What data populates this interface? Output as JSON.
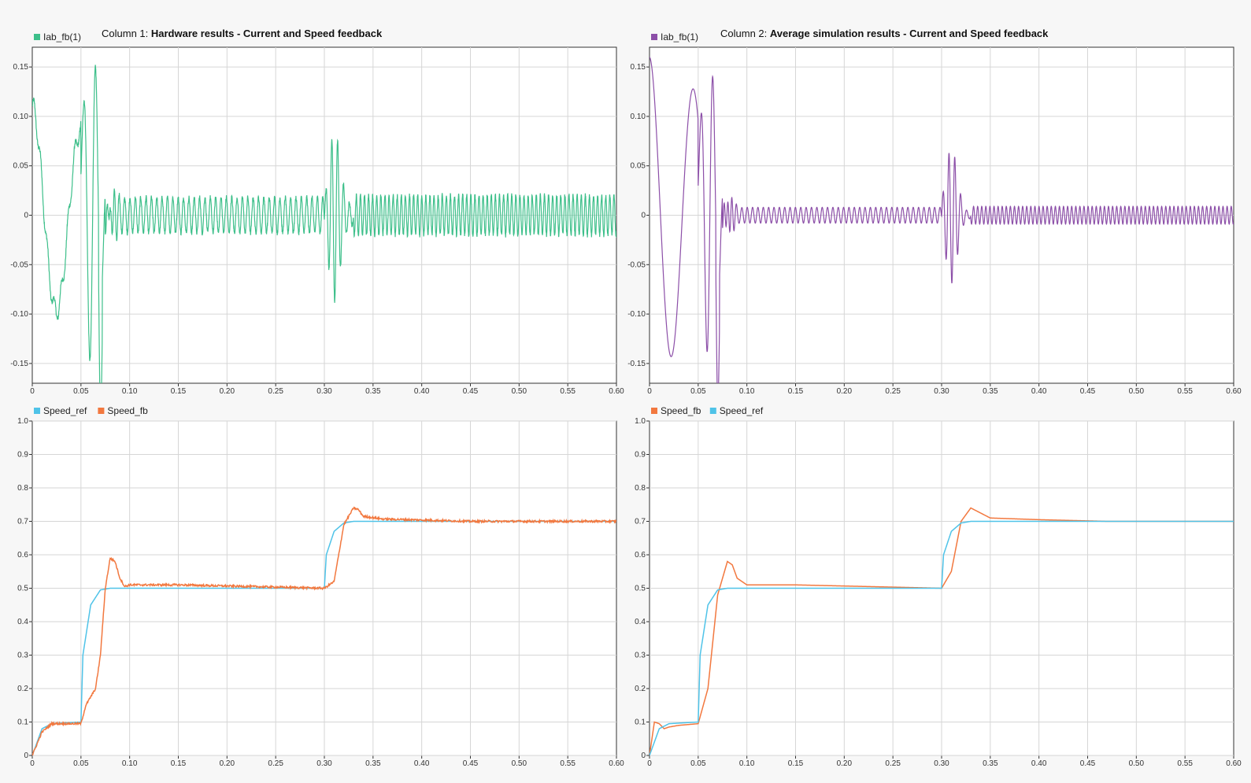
{
  "column_titles": [
    {
      "prefix": "Column 1: ",
      "bold": "Hardware results - Current and Speed feedback"
    },
    {
      "prefix": "Column 2: ",
      "bold": "Average simulation results - Current and Speed feedback"
    }
  ],
  "colors": {
    "iab_hw": "#3dbf8a",
    "iab_sim": "#8c4fa8",
    "speed_ref": "#4fc3e8",
    "speed_fb": "#f2783f",
    "grid": "#d6d6d6",
    "axis": "#333333",
    "plot_bg": "#ffffff",
    "page_bg": "#f7f7f7"
  },
  "chart_data": [
    {
      "type": "line",
      "id": "current_hw",
      "legend": [
        "Iab_fb(1)"
      ],
      "series": [
        {
          "name": "Iab_fb(1)",
          "color_key": "iab_hw",
          "kind": "current",
          "variant": "hw"
        }
      ],
      "xlim": [
        0,
        0.6
      ],
      "ylim": [
        -0.17,
        0.17
      ],
      "xticks": [
        "0",
        "0.05",
        "0.10",
        "0.15",
        "0.20",
        "0.25",
        "0.30",
        "0.35",
        "0.40",
        "0.45",
        "0.50",
        "0.55",
        "0.60"
      ],
      "yticks": [
        {
          "v": 0.15,
          "label": "0.15"
        },
        {
          "v": 0.1,
          "label": "0.10"
        },
        {
          "v": 0.05,
          "label": "0.05"
        },
        {
          "v": 0,
          "label": "0"
        },
        {
          "v": -0.05,
          "label": "-0.05"
        },
        {
          "v": -0.1,
          "label": "-0.10"
        },
        {
          "v": -0.15,
          "label": "-0.15"
        }
      ],
      "grid": true,
      "legend_position": "top-left"
    },
    {
      "type": "line",
      "id": "current_sim",
      "legend": [
        "Iab_fb(1)"
      ],
      "series": [
        {
          "name": "Iab_fb(1)",
          "color_key": "iab_sim",
          "kind": "current",
          "variant": "sim"
        }
      ],
      "xlim": [
        0,
        0.6
      ],
      "ylim": [
        -0.17,
        0.17
      ],
      "xticks": [
        "0",
        "0.05",
        "0.10",
        "0.15",
        "0.20",
        "0.25",
        "0.30",
        "0.35",
        "0.40",
        "0.45",
        "0.50",
        "0.55",
        "0.60"
      ],
      "yticks": [
        {
          "v": 0.15,
          "label": "0.15"
        },
        {
          "v": 0.1,
          "label": "0.10"
        },
        {
          "v": 0.05,
          "label": "0.05"
        },
        {
          "v": 0,
          "label": "0"
        },
        {
          "v": -0.05,
          "label": "-0.05"
        },
        {
          "v": -0.1,
          "label": "-0.10"
        },
        {
          "v": -0.15,
          "label": "-0.15"
        }
      ],
      "grid": true,
      "legend_position": "top-left"
    },
    {
      "type": "line",
      "id": "speed_hw",
      "legend": [
        "Speed_ref",
        "Speed_fb"
      ],
      "series": [
        {
          "name": "Speed_ref",
          "color_key": "speed_ref",
          "kind": "ref"
        },
        {
          "name": "Speed_fb",
          "color_key": "speed_fb",
          "kind": "fb",
          "variant": "hw"
        }
      ],
      "key_points": {
        "Speed_ref": [
          [
            0,
            0
          ],
          [
            0.01,
            0.08
          ],
          [
            0.02,
            0.095
          ],
          [
            0.05,
            0.1
          ],
          [
            0.052,
            0.3
          ],
          [
            0.06,
            0.45
          ],
          [
            0.07,
            0.495
          ],
          [
            0.08,
            0.5
          ],
          [
            0.3,
            0.5
          ],
          [
            0.302,
            0.6
          ],
          [
            0.31,
            0.67
          ],
          [
            0.32,
            0.695
          ],
          [
            0.33,
            0.7
          ],
          [
            0.6,
            0.7
          ]
        ],
        "Speed_fb": [
          [
            0,
            0
          ],
          [
            0.01,
            0.07
          ],
          [
            0.02,
            0.095
          ],
          [
            0.05,
            0.095
          ],
          [
            0.055,
            0.15
          ],
          [
            0.065,
            0.2
          ],
          [
            0.07,
            0.3
          ],
          [
            0.075,
            0.5
          ],
          [
            0.08,
            0.59
          ],
          [
            0.085,
            0.58
          ],
          [
            0.09,
            0.53
          ],
          [
            0.095,
            0.505
          ],
          [
            0.1,
            0.51
          ],
          [
            0.15,
            0.51
          ],
          [
            0.3,
            0.5
          ],
          [
            0.31,
            0.52
          ],
          [
            0.32,
            0.69
          ],
          [
            0.33,
            0.74
          ],
          [
            0.335,
            0.735
          ],
          [
            0.34,
            0.715
          ],
          [
            0.36,
            0.707
          ],
          [
            0.45,
            0.7
          ],
          [
            0.6,
            0.7
          ]
        ]
      },
      "xlim": [
        0,
        0.6
      ],
      "ylim": [
        0,
        1.0
      ],
      "xticks": [
        "0",
        "0.05",
        "0.10",
        "0.15",
        "0.20",
        "0.25",
        "0.30",
        "0.35",
        "0.40",
        "0.45",
        "0.50",
        "0.55",
        "0.60"
      ],
      "yticks": [
        {
          "v": 1.0,
          "label": "1.0"
        },
        {
          "v": 0.9,
          "label": "0.9"
        },
        {
          "v": 0.8,
          "label": "0.8"
        },
        {
          "v": 0.7,
          "label": "0.7"
        },
        {
          "v": 0.6,
          "label": "0.6"
        },
        {
          "v": 0.5,
          "label": "0.5"
        },
        {
          "v": 0.4,
          "label": "0.4"
        },
        {
          "v": 0.3,
          "label": "0.3"
        },
        {
          "v": 0.2,
          "label": "0.2"
        },
        {
          "v": 0.1,
          "label": "0.1"
        },
        {
          "v": 0,
          "label": "0"
        }
      ],
      "grid": true,
      "legend_position": "top-left"
    },
    {
      "type": "line",
      "id": "speed_sim",
      "legend": [
        "Speed_fb",
        "Speed_ref"
      ],
      "series": [
        {
          "name": "Speed_fb",
          "color_key": "speed_fb",
          "kind": "fb",
          "variant": "sim"
        },
        {
          "name": "Speed_ref",
          "color_key": "speed_ref",
          "kind": "ref"
        }
      ],
      "key_points": {
        "Speed_ref": [
          [
            0,
            0
          ],
          [
            0.01,
            0.08
          ],
          [
            0.02,
            0.095
          ],
          [
            0.05,
            0.1
          ],
          [
            0.052,
            0.3
          ],
          [
            0.06,
            0.45
          ],
          [
            0.07,
            0.495
          ],
          [
            0.08,
            0.5
          ],
          [
            0.3,
            0.5
          ],
          [
            0.302,
            0.6
          ],
          [
            0.31,
            0.67
          ],
          [
            0.32,
            0.695
          ],
          [
            0.33,
            0.7
          ],
          [
            0.6,
            0.7
          ]
        ],
        "Speed_fb": [
          [
            0,
            0
          ],
          [
            0.005,
            0.1
          ],
          [
            0.01,
            0.095
          ],
          [
            0.015,
            0.08
          ],
          [
            0.02,
            0.085
          ],
          [
            0.03,
            0.09
          ],
          [
            0.05,
            0.095
          ],
          [
            0.06,
            0.2
          ],
          [
            0.07,
            0.48
          ],
          [
            0.08,
            0.58
          ],
          [
            0.085,
            0.57
          ],
          [
            0.09,
            0.53
          ],
          [
            0.1,
            0.51
          ],
          [
            0.15,
            0.51
          ],
          [
            0.3,
            0.5
          ],
          [
            0.31,
            0.55
          ],
          [
            0.32,
            0.7
          ],
          [
            0.33,
            0.74
          ],
          [
            0.34,
            0.725
          ],
          [
            0.35,
            0.71
          ],
          [
            0.4,
            0.705
          ],
          [
            0.47,
            0.7
          ],
          [
            0.6,
            0.7
          ]
        ]
      },
      "xlim": [
        0,
        0.6
      ],
      "ylim": [
        0,
        1.0
      ],
      "xticks": [
        "0",
        "0.05",
        "0.10",
        "0.15",
        "0.20",
        "0.25",
        "0.30",
        "0.35",
        "0.40",
        "0.45",
        "0.50",
        "0.55",
        "0.60"
      ],
      "yticks": [
        {
          "v": 1.0,
          "label": "1.0"
        },
        {
          "v": 0.9,
          "label": "0.9"
        },
        {
          "v": 0.8,
          "label": "0.8"
        },
        {
          "v": 0.7,
          "label": "0.7"
        },
        {
          "v": 0.6,
          "label": "0.6"
        },
        {
          "v": 0.5,
          "label": "0.5"
        },
        {
          "v": 0.4,
          "label": "0.4"
        },
        {
          "v": 0.3,
          "label": "0.3"
        },
        {
          "v": 0.2,
          "label": "0.2"
        },
        {
          "v": 0.1,
          "label": "0.1"
        },
        {
          "v": 0,
          "label": "0"
        }
      ],
      "grid": true,
      "legend_position": "top-left"
    }
  ]
}
